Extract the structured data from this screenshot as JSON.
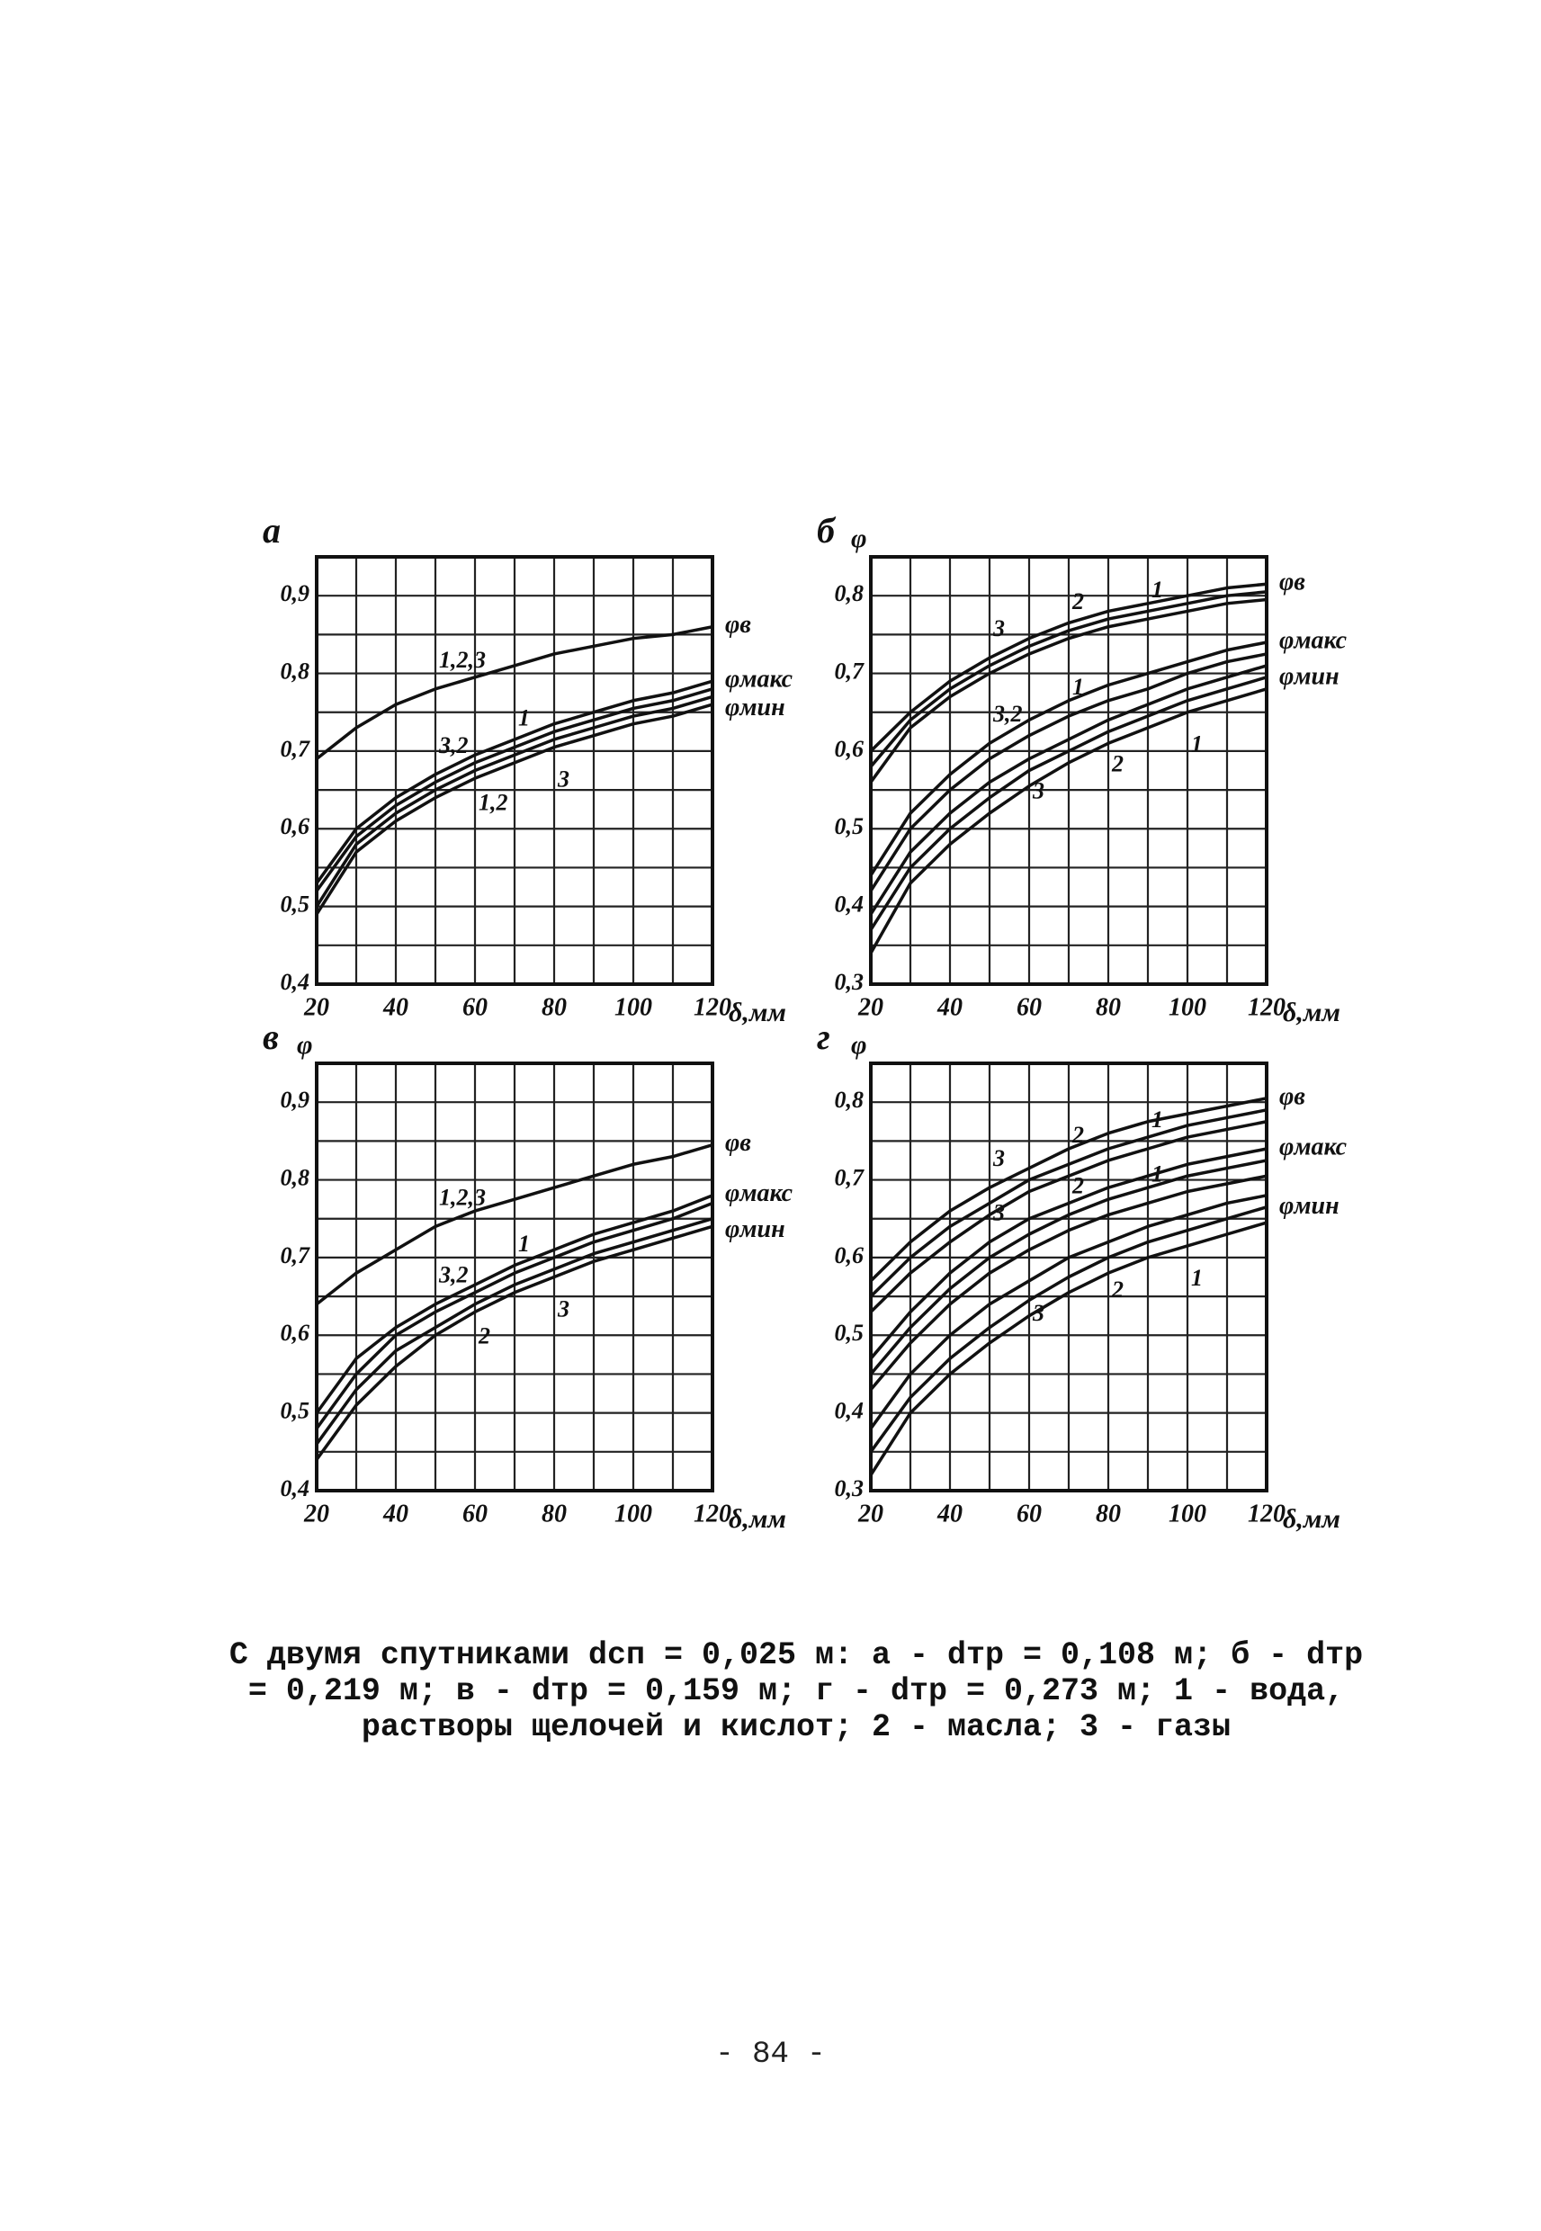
{
  "chart_data": [
    {
      "type": "line",
      "title": "а",
      "xlabel": "δ,мм",
      "x": [
        20,
        30,
        40,
        50,
        60,
        70,
        80,
        90,
        100,
        110,
        120
      ],
      "xlim": [
        20,
        120
      ],
      "xticks": [
        20,
        40,
        60,
        80,
        100,
        120
      ],
      "xgrid": [
        20,
        30,
        40,
        50,
        60,
        70,
        80,
        90,
        100,
        110,
        120
      ],
      "ylim": [
        0.4,
        0.95
      ],
      "yticks": [
        {
          "value": 0.4,
          "label": "0,4"
        },
        {
          "value": 0.5,
          "label": "0,5"
        },
        {
          "value": 0.6,
          "label": "0,6"
        },
        {
          "value": 0.7,
          "label": "0,7"
        },
        {
          "value": 0.8,
          "label": "0,8"
        },
        {
          "value": 0.9,
          "label": "0,9"
        }
      ],
      "ygrid": [
        0.4,
        0.45,
        0.5,
        0.55,
        0.6,
        0.65,
        0.7,
        0.75,
        0.8,
        0.85,
        0.9,
        0.95
      ],
      "color": "#111",
      "groups": [
        {
          "name": "φв",
          "series": [
            {
              "name": "1,2,3",
              "values": [
                0.69,
                0.73,
                0.76,
                0.78,
                0.795,
                0.81,
                0.825,
                0.835,
                0.845,
                0.85,
                0.86
              ]
            }
          ]
        },
        {
          "name": "φмакс",
          "series": [
            {
              "name": "3,2",
              "values": [
                0.53,
                0.6,
                0.64,
                0.67,
                0.695,
                0.715,
                0.735,
                0.75,
                0.765,
                0.775,
                0.79
              ]
            },
            {
              "name": "1",
              "values": [
                0.52,
                0.59,
                0.63,
                0.66,
                0.685,
                0.705,
                0.725,
                0.74,
                0.755,
                0.765,
                0.78
              ]
            }
          ]
        },
        {
          "name": "φмин",
          "series": [
            {
              "name": "1,2",
              "values": [
                0.5,
                0.58,
                0.62,
                0.65,
                0.675,
                0.695,
                0.715,
                0.73,
                0.745,
                0.755,
                0.77
              ]
            },
            {
              "name": "3",
              "values": [
                0.49,
                0.57,
                0.61,
                0.64,
                0.665,
                0.685,
                0.705,
                0.72,
                0.735,
                0.745,
                0.76
              ]
            }
          ]
        }
      ]
    },
    {
      "type": "line",
      "title": "б",
      "ylabel": "φ",
      "xlabel": "δ,мм",
      "x": [
        20,
        30,
        40,
        50,
        60,
        70,
        80,
        90,
        100,
        110,
        120
      ],
      "xlim": [
        20,
        120
      ],
      "xticks": [
        20,
        40,
        60,
        80,
        100,
        120
      ],
      "xgrid": [
        20,
        30,
        40,
        50,
        60,
        70,
        80,
        90,
        100,
        110,
        120
      ],
      "ylim": [
        0.3,
        0.85
      ],
      "yticks": [
        {
          "value": 0.3,
          "label": "0,3"
        },
        {
          "value": 0.4,
          "label": "0,4"
        },
        {
          "value": 0.5,
          "label": "0,5"
        },
        {
          "value": 0.6,
          "label": "0,6"
        },
        {
          "value": 0.7,
          "label": "0,7"
        },
        {
          "value": 0.8,
          "label": "0,8"
        }
      ],
      "ygrid": [
        0.3,
        0.35,
        0.4,
        0.45,
        0.5,
        0.55,
        0.6,
        0.65,
        0.7,
        0.75,
        0.8,
        0.85
      ],
      "color": "#111",
      "groups": [
        {
          "name": "φв",
          "series": [
            {
              "name": "3",
              "values": [
                0.6,
                0.65,
                0.69,
                0.72,
                0.745,
                0.765,
                0.78,
                0.79,
                0.8,
                0.81,
                0.815
              ]
            },
            {
              "name": "2",
              "values": [
                0.58,
                0.64,
                0.68,
                0.71,
                0.735,
                0.755,
                0.77,
                0.78,
                0.79,
                0.8,
                0.805
              ]
            },
            {
              "name": "1",
              "values": [
                0.56,
                0.63,
                0.67,
                0.7,
                0.725,
                0.745,
                0.76,
                0.77,
                0.78,
                0.79,
                0.795
              ]
            }
          ]
        },
        {
          "name": "φмакс",
          "series": [
            {
              "name": "3,2",
              "values": [
                0.44,
                0.52,
                0.57,
                0.61,
                0.64,
                0.665,
                0.685,
                0.7,
                0.715,
                0.73,
                0.74
              ]
            },
            {
              "name": "1",
              "values": [
                0.42,
                0.5,
                0.55,
                0.59,
                0.62,
                0.645,
                0.665,
                0.68,
                0.7,
                0.715,
                0.725
              ]
            }
          ]
        },
        {
          "name": "φмин",
          "series": [
            {
              "name": "3",
              "values": [
                0.39,
                0.47,
                0.52,
                0.56,
                0.59,
                0.615,
                0.64,
                0.66,
                0.68,
                0.695,
                0.71
              ]
            },
            {
              "name": "2",
              "values": [
                0.37,
                0.45,
                0.5,
                0.54,
                0.575,
                0.6,
                0.625,
                0.645,
                0.665,
                0.68,
                0.695
              ]
            },
            {
              "name": "1",
              "values": [
                0.34,
                0.43,
                0.48,
                0.52,
                0.555,
                0.585,
                0.61,
                0.63,
                0.65,
                0.665,
                0.68
              ]
            }
          ]
        }
      ]
    },
    {
      "type": "line",
      "title": "в",
      "ylabel": "φ",
      "xlabel": "δ,мм",
      "x": [
        20,
        30,
        40,
        50,
        60,
        70,
        80,
        90,
        100,
        110,
        120
      ],
      "xlim": [
        20,
        120
      ],
      "xticks": [
        20,
        40,
        60,
        80,
        100,
        120
      ],
      "xgrid": [
        20,
        30,
        40,
        50,
        60,
        70,
        80,
        90,
        100,
        110,
        120
      ],
      "ylim": [
        0.4,
        0.95
      ],
      "yticks": [
        {
          "value": 0.4,
          "label": "0,4"
        },
        {
          "value": 0.5,
          "label": "0,5"
        },
        {
          "value": 0.6,
          "label": "0,6"
        },
        {
          "value": 0.7,
          "label": "0,7"
        },
        {
          "value": 0.8,
          "label": "0,8"
        },
        {
          "value": 0.9,
          "label": "0,9"
        }
      ],
      "ygrid": [
        0.4,
        0.45,
        0.5,
        0.55,
        0.6,
        0.65,
        0.7,
        0.75,
        0.8,
        0.85,
        0.9,
        0.95
      ],
      "color": "#111",
      "groups": [
        {
          "name": "φв",
          "series": [
            {
              "name": "1,2,3",
              "values": [
                0.64,
                0.68,
                0.71,
                0.74,
                0.76,
                0.775,
                0.79,
                0.805,
                0.82,
                0.83,
                0.845
              ]
            }
          ]
        },
        {
          "name": "φмакс",
          "series": [
            {
              "name": "3,2",
              "values": [
                0.5,
                0.57,
                0.61,
                0.64,
                0.665,
                0.69,
                0.71,
                0.73,
                0.745,
                0.76,
                0.78
              ]
            },
            {
              "name": "1",
              "values": [
                0.48,
                0.55,
                0.6,
                0.63,
                0.655,
                0.68,
                0.7,
                0.72,
                0.735,
                0.75,
                0.77
              ]
            }
          ]
        },
        {
          "name": "φмин",
          "series": [
            {
              "name": "2",
              "values": [
                0.46,
                0.53,
                0.58,
                0.61,
                0.64,
                0.665,
                0.685,
                0.705,
                0.72,
                0.735,
                0.75
              ]
            },
            {
              "name": "3",
              "values": [
                0.44,
                0.51,
                0.56,
                0.6,
                0.63,
                0.655,
                0.675,
                0.695,
                0.71,
                0.725,
                0.74
              ]
            }
          ]
        }
      ]
    },
    {
      "type": "line",
      "title": "г",
      "ylabel": "φ",
      "xlabel": "δ,мм",
      "x": [
        20,
        30,
        40,
        50,
        60,
        70,
        80,
        90,
        100,
        110,
        120
      ],
      "xlim": [
        20,
        120
      ],
      "xticks": [
        20,
        40,
        60,
        80,
        100,
        120
      ],
      "xgrid": [
        20,
        30,
        40,
        50,
        60,
        70,
        80,
        90,
        100,
        110,
        120
      ],
      "ylim": [
        0.3,
        0.85
      ],
      "yticks": [
        {
          "value": 0.3,
          "label": "0,3"
        },
        {
          "value": 0.4,
          "label": "0,4"
        },
        {
          "value": 0.5,
          "label": "0,5"
        },
        {
          "value": 0.6,
          "label": "0,6"
        },
        {
          "value": 0.7,
          "label": "0,7"
        },
        {
          "value": 0.8,
          "label": "0,8"
        }
      ],
      "ygrid": [
        0.3,
        0.35,
        0.4,
        0.45,
        0.5,
        0.55,
        0.6,
        0.65,
        0.7,
        0.75,
        0.8,
        0.85
      ],
      "color": "#111",
      "groups": [
        {
          "name": "φв",
          "series": [
            {
              "name": "3",
              "values": [
                0.57,
                0.62,
                0.66,
                0.69,
                0.715,
                0.74,
                0.76,
                0.775,
                0.785,
                0.795,
                0.805
              ]
            },
            {
              "name": "2",
              "values": [
                0.55,
                0.6,
                0.64,
                0.67,
                0.7,
                0.72,
                0.74,
                0.755,
                0.77,
                0.78,
                0.79
              ]
            },
            {
              "name": "1",
              "values": [
                0.53,
                0.58,
                0.62,
                0.655,
                0.685,
                0.705,
                0.725,
                0.74,
                0.755,
                0.765,
                0.775
              ]
            }
          ]
        },
        {
          "name": "φмакс",
          "series": [
            {
              "name": "3",
              "values": [
                0.47,
                0.53,
                0.58,
                0.62,
                0.65,
                0.67,
                0.69,
                0.705,
                0.72,
                0.73,
                0.74
              ]
            },
            {
              "name": "2",
              "values": [
                0.45,
                0.51,
                0.56,
                0.6,
                0.63,
                0.655,
                0.675,
                0.69,
                0.705,
                0.715,
                0.725
              ]
            },
            {
              "name": "1",
              "values": [
                0.43,
                0.49,
                0.54,
                0.58,
                0.61,
                0.635,
                0.655,
                0.67,
                0.685,
                0.695,
                0.705
              ]
            }
          ]
        },
        {
          "name": "φмин",
          "series": [
            {
              "name": "3",
              "values": [
                0.38,
                0.45,
                0.5,
                0.54,
                0.57,
                0.6,
                0.62,
                0.64,
                0.655,
                0.67,
                0.68
              ]
            },
            {
              "name": "2",
              "values": [
                0.35,
                0.42,
                0.47,
                0.51,
                0.545,
                0.575,
                0.6,
                0.62,
                0.635,
                0.65,
                0.665
              ]
            },
            {
              "name": "1",
              "values": [
                0.32,
                0.4,
                0.45,
                0.49,
                0.525,
                0.555,
                0.58,
                0.6,
                0.615,
                0.63,
                0.645
              ]
            }
          ]
        }
      ]
    }
  ],
  "caption": "С двумя спутниками dсп = 0,025 м: а - dтр = 0,108 м; б - dтр = 0,219 м; в - dтр = 0,159 м; г - dтр = 0,273 м; 1 - вода, растворы щелочей и кислот; 2 - масла; 3 - газы",
  "page_number": "- 84 -"
}
